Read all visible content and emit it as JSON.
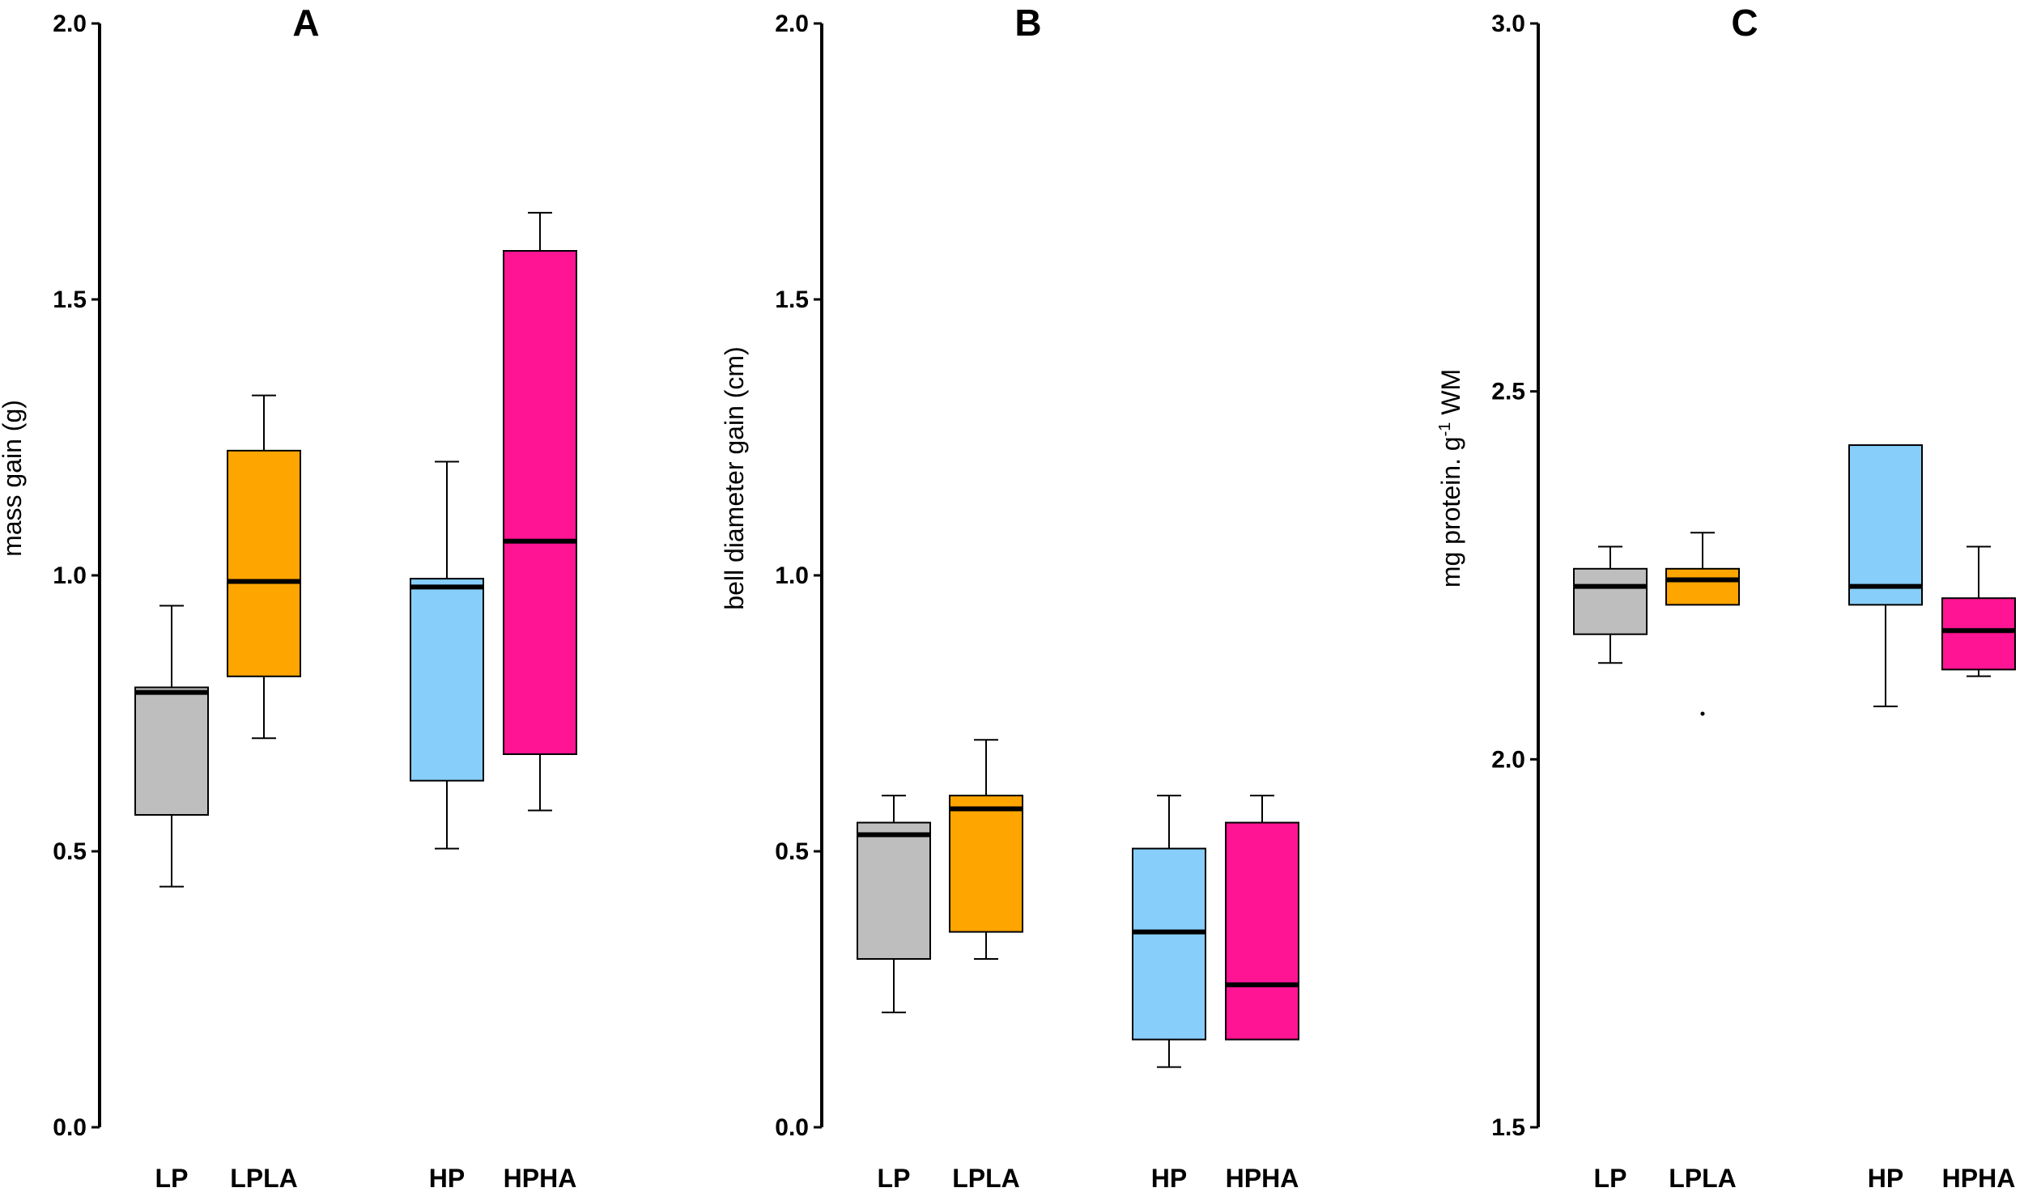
{
  "chart_data": [
    {
      "type": "box",
      "title": "A",
      "ylabel": "mass gain (g)",
      "ylabel_sup": "",
      "ylabel_after": "",
      "ylim": [
        0,
        2.0
      ],
      "yticks": [
        "0.0",
        "0.5",
        "1.0",
        "1.5",
        "2.0"
      ],
      "ytick_values": [
        0,
        0.5,
        1.0,
        1.5,
        2.0
      ],
      "categories": [
        "LP",
        "LPLA",
        "HP",
        "HPHA"
      ],
      "colors": [
        "#bebebe",
        "#ffa500",
        "#87cefa",
        "#ff1493"
      ],
      "boxes": [
        {
          "low": 0.436,
          "q1": 0.566,
          "median": 0.788,
          "q3": 0.797,
          "high": 0.945,
          "outliers": []
        },
        {
          "low": 0.705,
          "q1": 0.817,
          "median": 0.989,
          "q3": 1.226,
          "high": 1.326,
          "outliers": []
        },
        {
          "low": 0.505,
          "q1": 0.628,
          "median": 0.979,
          "q3": 0.994,
          "high": 1.206,
          "outliers": []
        },
        {
          "low": 0.574,
          "q1": 0.676,
          "median": 1.062,
          "q3": 1.588,
          "high": 1.657,
          "outliers": []
        }
      ]
    },
    {
      "type": "box",
      "title": "B",
      "ylabel": "bell diameter gain (cm)",
      "ylabel_sup": "",
      "ylabel_after": "",
      "ylim": [
        0,
        2.0
      ],
      "yticks": [
        "0.0",
        "0.5",
        "1.0",
        "1.5",
        "2.0"
      ],
      "ytick_values": [
        0,
        0.5,
        1.0,
        1.5,
        2.0
      ],
      "categories": [
        "LP",
        "LPLA",
        "HP",
        "HPHA"
      ],
      "colors": [
        "#bebebe",
        "#ffa500",
        "#87cefa",
        "#ff1493"
      ],
      "boxes": [
        {
          "low": 0.208,
          "q1": 0.305,
          "median": 0.53,
          "q3": 0.552,
          "high": 0.601,
          "outliers": []
        },
        {
          "low": 0.305,
          "q1": 0.354,
          "median": 0.577,
          "q3": 0.601,
          "high": 0.702,
          "outliers": []
        },
        {
          "low": 0.109,
          "q1": 0.159,
          "median": 0.354,
          "q3": 0.505,
          "high": 0.601,
          "outliers": []
        },
        {
          "low": null,
          "q1": 0.159,
          "median": 0.258,
          "q3": 0.552,
          "high": 0.601,
          "outliers": []
        }
      ]
    },
    {
      "type": "box",
      "title": "C",
      "ylabel": "mg protein. g",
      "ylabel_sup": "-1",
      "ylabel_after": " WM",
      "ylim": [
        1.5,
        3.0
      ],
      "yticks": [
        "1.5",
        "2.0",
        "2.5",
        "3.0"
      ],
      "ytick_values": [
        1.5,
        2.0,
        2.5,
        3.0
      ],
      "categories": [
        "LP",
        "LPLA",
        "HP",
        "HPHA"
      ],
      "colors": [
        "#bebebe",
        "#ffa500",
        "#87cefa",
        "#ff1493"
      ],
      "boxes": [
        {
          "low": 2.131,
          "q1": 2.17,
          "median": 2.235,
          "q3": 2.259,
          "high": 2.289,
          "outliers": []
        },
        {
          "low": null,
          "q1": 2.21,
          "median": 2.244,
          "q3": 2.259,
          "high": 2.308,
          "outliers": [
            2.062
          ]
        },
        {
          "low": 2.072,
          "q1": 2.21,
          "median": 2.235,
          "q3": 2.427,
          "high": null,
          "outliers": []
        },
        {
          "low": 2.113,
          "q1": 2.122,
          "median": 2.175,
          "q3": 2.219,
          "high": 2.289,
          "outliers": []
        }
      ]
    }
  ]
}
